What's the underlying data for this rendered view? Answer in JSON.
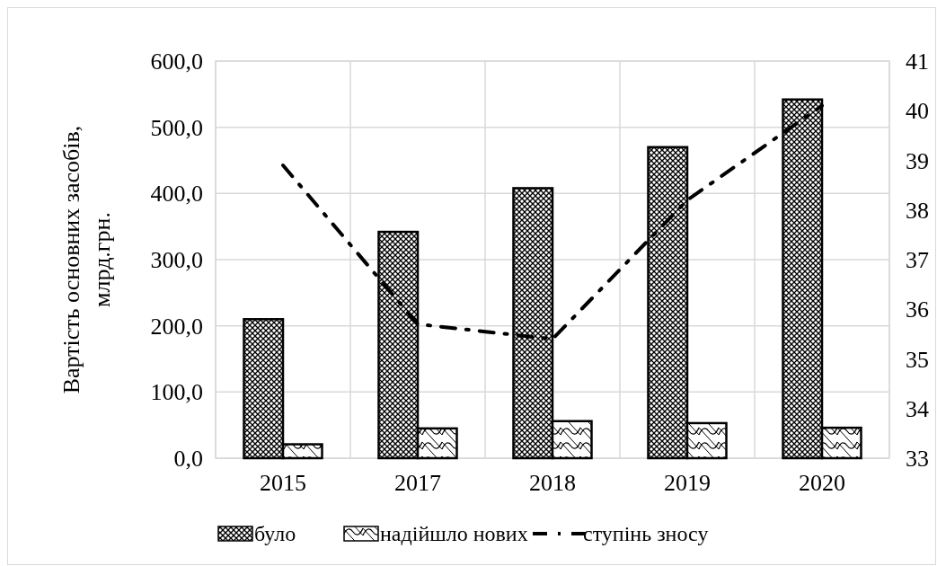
{
  "chart_data": {
    "type": "bar",
    "categories": [
      "2015",
      "2017",
      "2018",
      "2019",
      "2020"
    ],
    "ylabel": "Вартість основних засобів, млрд.грн.",
    "series": [
      {
        "name": "було",
        "color": "#000000",
        "values": [
          210,
          342,
          408,
          470,
          542
        ]
      },
      {
        "name": "надійшло нових",
        "color": "#000000",
        "values": [
          21,
          45,
          56,
          53,
          46
        ]
      },
      {
        "name": "ступінь зносу",
        "type": "line",
        "axis": "y2",
        "color": "#000000",
        "line_style": "dashed",
        "values": [
          38.9,
          35.7,
          35.4,
          38.2,
          40.1
        ]
      }
    ],
    "ylim": [
      0,
      600
    ],
    "yticks": [
      {
        "value": 0,
        "label": "0,0"
      },
      {
        "value": 100,
        "label": "100,0"
      },
      {
        "value": 200,
        "label": "200,0"
      },
      {
        "value": 300,
        "label": "300,0"
      },
      {
        "value": 400,
        "label": "400,0"
      },
      {
        "value": 500,
        "label": "500,0"
      },
      {
        "value": 600,
        "label": "600,0"
      }
    ],
    "y2lim": [
      33,
      41
    ],
    "y2ticks": [
      33,
      34,
      35,
      36,
      37,
      38,
      39,
      40,
      41
    ],
    "grid": true,
    "legend": "bottom",
    "marker": "none"
  }
}
